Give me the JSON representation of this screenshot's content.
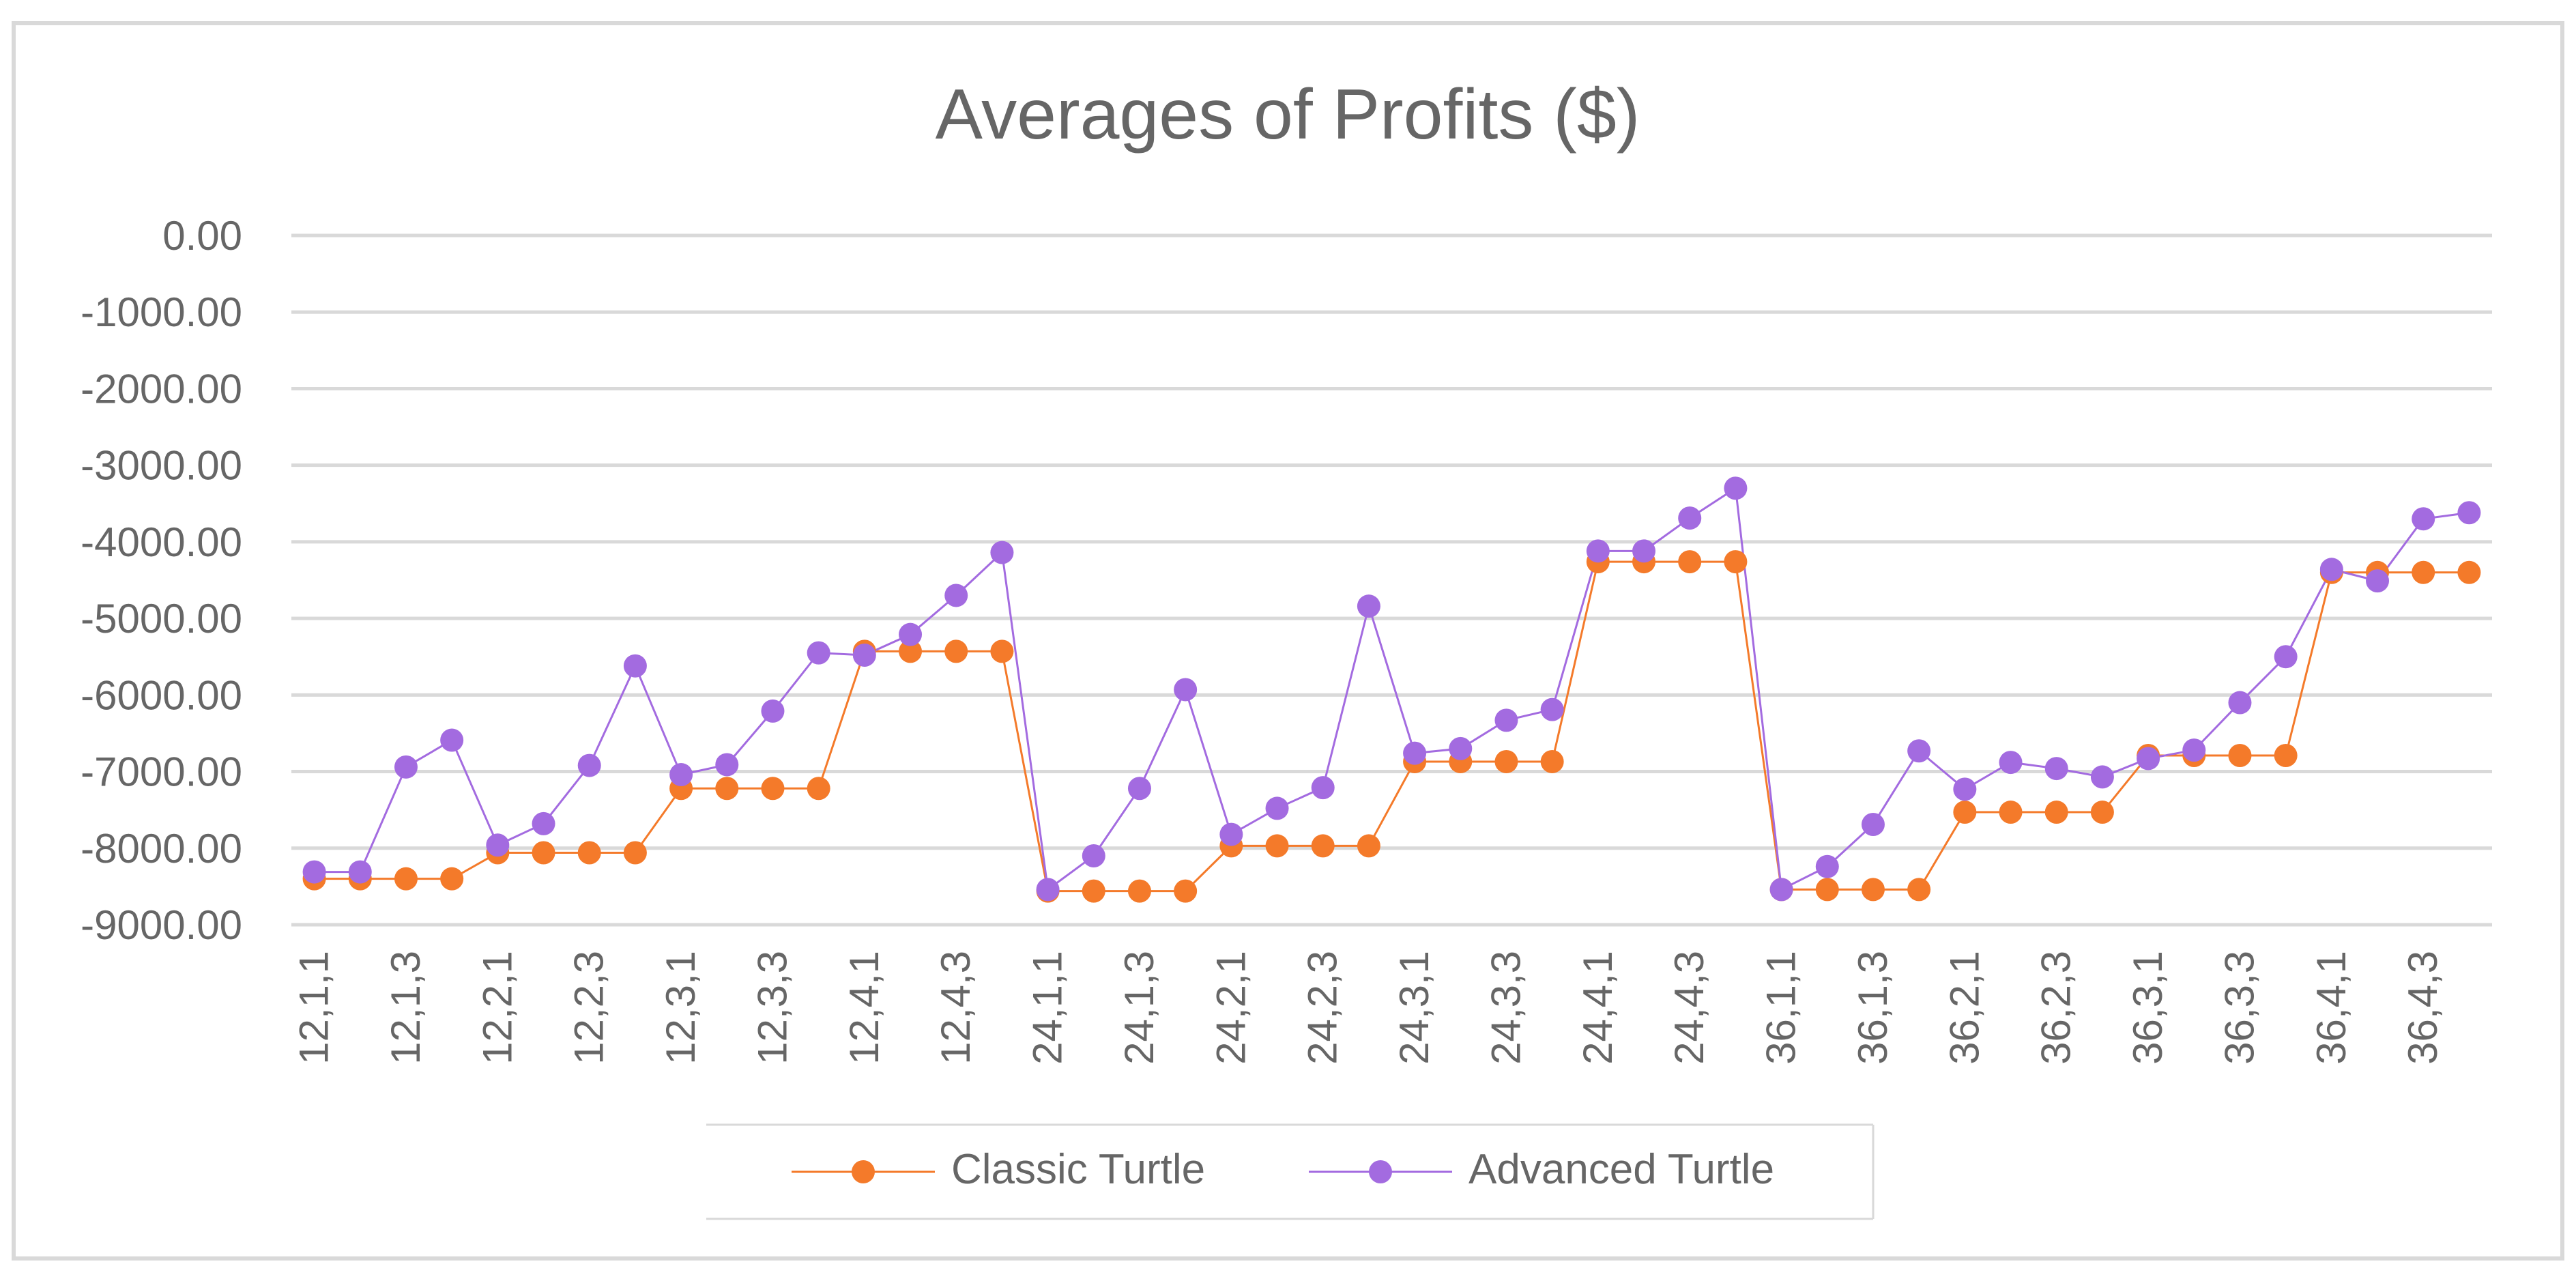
{
  "colors": {
    "classic": "#F47A2A",
    "advanced": "#A36BE0",
    "grid": "#D9D9D9",
    "text": "#666666",
    "frame": "#D9D9D9"
  },
  "chart_data": {
    "type": "line",
    "title": "Averages of Profits ($)",
    "xlabel": "",
    "ylabel": "",
    "ylim": [
      -9000,
      0
    ],
    "y_ticks": [
      "0.00",
      "-1000.00",
      "-2000.00",
      "-3000.00",
      "-4000.00",
      "-5000.00",
      "-6000.00",
      "-7000.00",
      "-8000.00",
      "-9000.00"
    ],
    "y_tick_values": [
      0,
      -1000,
      -2000,
      -3000,
      -4000,
      -5000,
      -6000,
      -7000,
      -8000,
      -9000
    ],
    "grid": true,
    "legend_position": "bottom",
    "categories": [
      "12,1,1",
      "12,1,2",
      "12,1,3",
      "12,1,4",
      "12,2,1",
      "12,2,2",
      "12,2,3",
      "12,2,4",
      "12,3,1",
      "12,3,2",
      "12,3,3",
      "12,3,4",
      "12,4,1",
      "12,4,2",
      "12,4,3",
      "12,4,4",
      "24,1,1",
      "24,1,2",
      "24,1,3",
      "24,1,4",
      "24,2,1",
      "24,2,2",
      "24,2,3",
      "24,2,4",
      "24,3,1",
      "24,3,2",
      "24,3,3",
      "24,3,4",
      "24,4,1",
      "24,4,2",
      "24,4,3",
      "24,4,4",
      "36,1,1",
      "36,1,2",
      "36,1,3",
      "36,1,4",
      "36,2,1",
      "36,2,2",
      "36,2,3",
      "36,2,4",
      "36,3,1",
      "36,3,2",
      "36,3,3",
      "36,3,4",
      "36,4,1",
      "36,4,2",
      "36,4,3",
      "36,4,4"
    ],
    "tick_labels": [
      "12,1,1",
      "12,1,3",
      "12,2,1",
      "12,2,3",
      "12,3,1",
      "12,3,3",
      "12,4,1",
      "12,4,3",
      "24,1,1",
      "24,1,3",
      "24,2,1",
      "24,2,3",
      "24,3,1",
      "24,3,3",
      "24,4,1",
      "24,4,3",
      "36,1,1",
      "36,1,3",
      "36,2,1",
      "36,2,3",
      "36,3,1",
      "36,3,3",
      "36,4,1",
      "36,4,3"
    ],
    "series": [
      {
        "name": "Classic Turtle",
        "values": [
          -8400,
          -8400,
          -8400,
          -8400,
          -8060,
          -8060,
          -8060,
          -8060,
          -7220,
          -7220,
          -7220,
          -7220,
          -5430,
          -5430,
          -5430,
          -5430,
          -8560,
          -8560,
          -8560,
          -8560,
          -7970,
          -7970,
          -7970,
          -7970,
          -6870,
          -6870,
          -6870,
          -6870,
          -4260,
          -4260,
          -4260,
          -4260,
          -8540,
          -8540,
          -8540,
          -8540,
          -7530,
          -7530,
          -7530,
          -7530,
          -6790,
          -6790,
          -6790,
          -6790,
          -4400,
          -4400,
          -4400,
          -4400
        ]
      },
      {
        "name": "Advanced Turtle",
        "values": [
          -8310,
          -8310,
          -6940,
          -6590,
          -7960,
          -7680,
          -6920,
          -5620,
          -7040,
          -6910,
          -6210,
          -5450,
          -5480,
          -5210,
          -4700,
          -4140,
          -8540,
          -8100,
          -7220,
          -5930,
          -7820,
          -7480,
          -7210,
          -4840,
          -6760,
          -6700,
          -6330,
          -6190,
          -4120,
          -4120,
          -3690,
          -3300,
          -8540,
          -8240,
          -7690,
          -6730,
          -7230,
          -6880,
          -6960,
          -7070,
          -6830,
          -6720,
          -6100,
          -5500,
          -4360,
          -4510,
          -3700,
          -3620
        ]
      }
    ]
  }
}
